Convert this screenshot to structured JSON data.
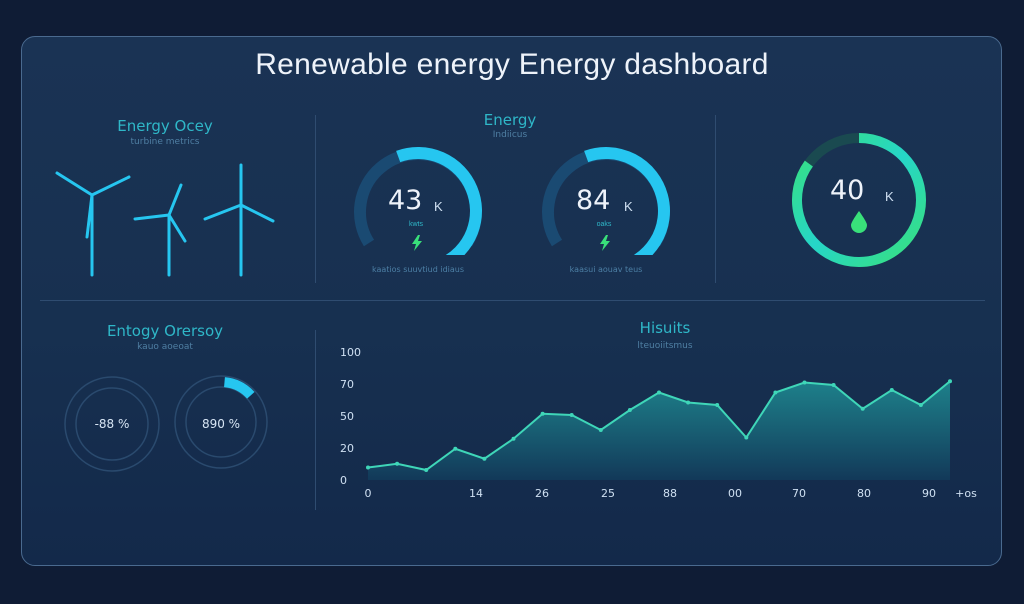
{
  "header": {
    "title": "Renewable energy Energy dashboard"
  },
  "wind_panel": {
    "heading": "Energy Ocey",
    "subheading": "turbine metrics"
  },
  "energy_panel": {
    "heading": "Energy",
    "subheading": "Indiicus",
    "gauges": [
      {
        "value": "43",
        "unit": "K",
        "small": "kwts",
        "caption": "kaatios suuvtiud idiaus",
        "fraction": 0.72
      },
      {
        "value": "84",
        "unit": "K",
        "small": "oaks",
        "caption": "kaasui aouav teus",
        "fraction": 0.78
      }
    ]
  },
  "water_gauge": {
    "value": "40",
    "unit": "K",
    "fraction": 0.85
  },
  "overview_panel": {
    "heading": "Entogy Orersoy",
    "subheading": "kauo aoeoat",
    "rings": [
      {
        "value": "-88 %",
        "fraction": 0.0
      },
      {
        "value": "890 %",
        "fraction": 0.12
      }
    ]
  },
  "colors": {
    "accent_cyan": "#26c6f0",
    "accent_green": "#39e07a",
    "teal_text": "#2fb7c8",
    "panel_border": "#4a6a8f"
  },
  "chart_data": {
    "type": "area",
    "title": "Hisuits",
    "subtitle": "lteuoiitsmus",
    "ylim": [
      0,
      100
    ],
    "y_ticks": [
      "0",
      "20",
      "50",
      "70",
      "100"
    ],
    "x_ticks": [
      "0",
      "14",
      "26",
      "25",
      "88",
      "00",
      "70",
      "80",
      "90",
      "+os"
    ],
    "x": [
      0,
      5,
      10,
      15,
      20,
      25,
      30,
      35,
      40,
      45,
      50,
      55,
      60,
      65,
      70,
      75,
      80,
      85,
      90,
      95,
      100
    ],
    "values": [
      10,
      13,
      8,
      25,
      17,
      33,
      53,
      52,
      40,
      56,
      70,
      62,
      60,
      34,
      70,
      78,
      76,
      57,
      72,
      60,
      79
    ],
    "grid": false,
    "legend": "none"
  }
}
